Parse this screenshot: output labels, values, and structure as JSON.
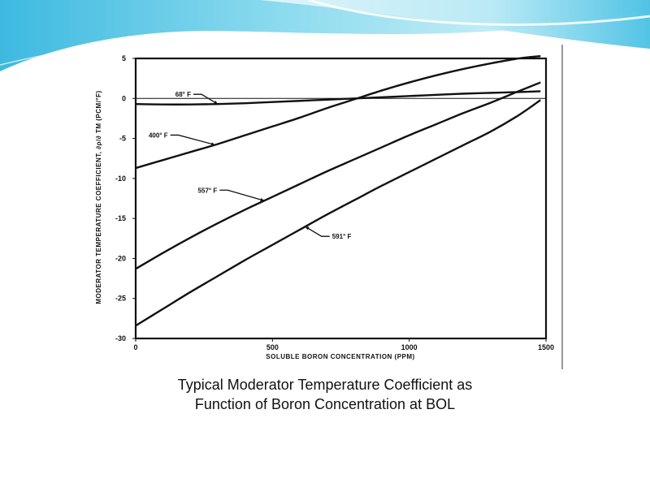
{
  "caption": {
    "line1": "Typical Moderator Temperature Coefficient as",
    "line2": "Function of Boron Concentration at BOL"
  },
  "colors": {
    "banner_light": "#d6f1f8",
    "banner_mid": "#6fd0ea",
    "banner_dark": "#1aa7d3",
    "line": "#111111"
  },
  "chart_data": {
    "type": "line",
    "xlabel": "SOLUBLE BORON CONCENTRATION (PPM)",
    "ylabel": "MODERATOR TEMPERATURE COEFFICIENT, ∂ρ/∂ TM (PCM/°F)",
    "xlim": [
      0,
      1500
    ],
    "ylim": [
      -30,
      5
    ],
    "x_ticks": [
      0,
      500,
      1000,
      1500
    ],
    "y_ticks": [
      5,
      0,
      -5,
      -10,
      -15,
      -20,
      -25,
      -30
    ],
    "grid": false,
    "series": [
      {
        "name": "68° F",
        "x": [
          0,
          100,
          200,
          300,
          400,
          500,
          600,
          700,
          800,
          900,
          1000,
          1100,
          1200,
          1300,
          1400,
          1480
        ],
        "y": [
          -0.7,
          -0.75,
          -0.75,
          -0.7,
          -0.6,
          -0.45,
          -0.3,
          -0.15,
          0,
          0.15,
          0.3,
          0.45,
          0.6,
          0.7,
          0.8,
          0.9
        ]
      },
      {
        "name": "400° F",
        "x": [
          0,
          100,
          200,
          300,
          400,
          500,
          600,
          700,
          800,
          900,
          1000,
          1100,
          1200,
          1300,
          1400,
          1480
        ],
        "y": [
          -8.7,
          -7.7,
          -6.7,
          -5.7,
          -4.6,
          -3.5,
          -2.4,
          -1.2,
          -0.1,
          1.0,
          2.0,
          2.9,
          3.7,
          4.4,
          5.0,
          5.3
        ]
      },
      {
        "name": "557° F",
        "x": [
          0,
          100,
          200,
          300,
          400,
          500,
          600,
          700,
          800,
          900,
          1000,
          1100,
          1200,
          1300,
          1400,
          1480
        ],
        "y": [
          -21.3,
          -19.3,
          -17.4,
          -15.6,
          -13.9,
          -12.3,
          -10.7,
          -9.1,
          -7.6,
          -6.1,
          -4.6,
          -3.2,
          -1.8,
          -0.5,
          0.9,
          2.0
        ]
      },
      {
        "name": "591° F",
        "x": [
          0,
          100,
          200,
          300,
          400,
          500,
          600,
          700,
          800,
          900,
          1000,
          1100,
          1200,
          1300,
          1400,
          1480
        ],
        "y": [
          -28.4,
          -26.3,
          -24.2,
          -22.2,
          -20.2,
          -18.3,
          -16.4,
          -14.5,
          -12.7,
          -10.9,
          -9.2,
          -7.5,
          -5.8,
          -4.1,
          -2.1,
          -0.2
        ]
      }
    ],
    "annotations": [
      {
        "label": "68° F",
        "series": 0,
        "at_x": 300
      },
      {
        "label": "400° F",
        "series": 1,
        "at_x": 290
      },
      {
        "label": "557° F",
        "series": 2,
        "at_x": 470
      },
      {
        "label": "591° F",
        "series": 3,
        "at_x": 620
      }
    ]
  }
}
